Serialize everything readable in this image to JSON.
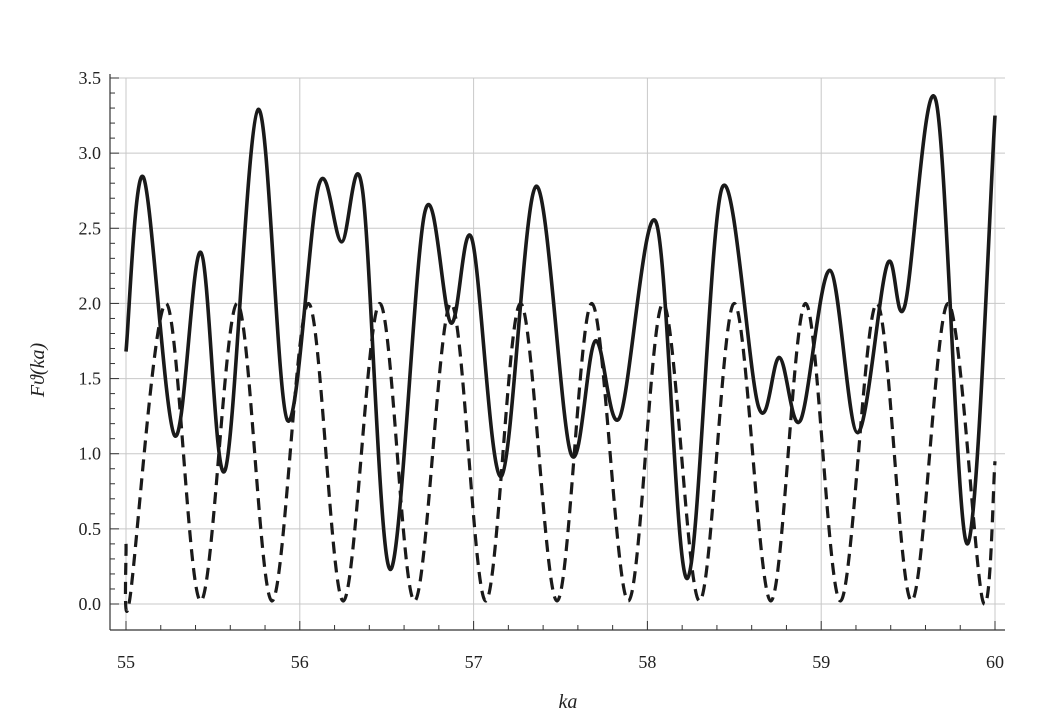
{
  "chart_data": {
    "type": "line",
    "xlabel": "ka",
    "ylabel": "Fϑ(ka)",
    "xlim": [
      55,
      60
    ],
    "ylim": [
      -0.18,
      3.5
    ],
    "x_ticks": [
      55,
      56,
      57,
      58,
      59,
      60
    ],
    "x_tick_labels": [
      "55",
      "56",
      "57",
      "58",
      "59",
      "60"
    ],
    "y_ticks": [
      0.0,
      0.5,
      1.0,
      1.5,
      2.0,
      2.5,
      3.0,
      3.5
    ],
    "y_tick_labels": [
      "0.0",
      "0.5",
      "1.0",
      "1.5",
      "2.0",
      "2.5",
      "3.0",
      "3.5"
    ],
    "grid": true,
    "series": [
      {
        "style": "solid",
        "points": [
          [
            55.0,
            1.68
          ],
          [
            55.1,
            2.84
          ],
          [
            55.28,
            1.12
          ],
          [
            55.43,
            2.34
          ],
          [
            55.57,
            0.89
          ],
          [
            55.76,
            3.29
          ],
          [
            55.93,
            1.22
          ],
          [
            56.11,
            2.79
          ],
          [
            56.24,
            2.41
          ],
          [
            56.36,
            2.76
          ],
          [
            56.52,
            0.23
          ],
          [
            56.72,
            2.61
          ],
          [
            56.87,
            1.87
          ],
          [
            56.99,
            2.43
          ],
          [
            57.16,
            0.85
          ],
          [
            57.36,
            2.78
          ],
          [
            57.56,
            1.0
          ],
          [
            57.7,
            1.75
          ],
          [
            57.84,
            1.24
          ],
          [
            58.05,
            2.54
          ],
          [
            58.23,
            0.17
          ],
          [
            58.43,
            2.77
          ],
          [
            58.64,
            1.31
          ],
          [
            58.76,
            1.64
          ],
          [
            58.88,
            1.22
          ],
          [
            59.05,
            2.22
          ],
          [
            59.21,
            1.14
          ],
          [
            59.38,
            2.26
          ],
          [
            59.48,
            1.98
          ],
          [
            59.66,
            3.35
          ],
          [
            59.84,
            0.4
          ],
          [
            60.0,
            3.25
          ]
        ]
      },
      {
        "style": "dashed",
        "points": [
          [
            55.0,
            0.4
          ],
          [
            55.02,
            0.02
          ],
          [
            55.23,
            2.0
          ],
          [
            55.43,
            0.02
          ],
          [
            55.64,
            2.0
          ],
          [
            55.84,
            0.02
          ],
          [
            56.05,
            2.0
          ],
          [
            56.25,
            0.02
          ],
          [
            56.46,
            2.0
          ],
          [
            56.66,
            0.02
          ],
          [
            56.87,
            2.0
          ],
          [
            57.07,
            0.02
          ],
          [
            57.27,
            2.0
          ],
          [
            57.48,
            0.02
          ],
          [
            57.68,
            2.0
          ],
          [
            57.89,
            0.02
          ],
          [
            58.09,
            2.0
          ],
          [
            58.3,
            0.02
          ],
          [
            58.5,
            2.0
          ],
          [
            58.71,
            0.02
          ],
          [
            58.91,
            2.0
          ],
          [
            59.11,
            0.02
          ],
          [
            59.32,
            2.0
          ],
          [
            59.52,
            0.02
          ],
          [
            59.73,
            2.0
          ],
          [
            59.93,
            0.02
          ],
          [
            60.0,
            0.95
          ]
        ]
      }
    ]
  }
}
